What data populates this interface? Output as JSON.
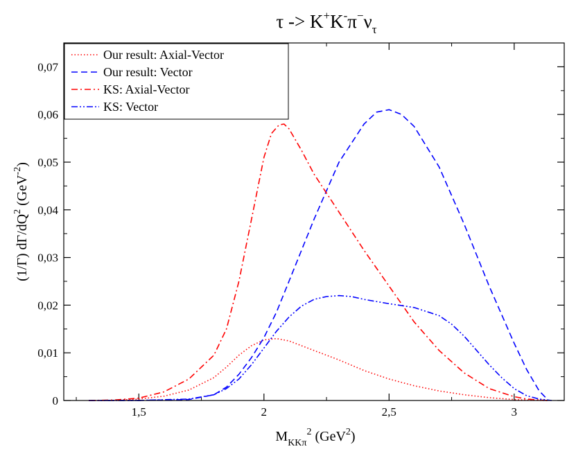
{
  "chart_data": {
    "type": "line",
    "title": {
      "base": "τ -> K",
      "s1": "+",
      "mid1": "K",
      "s2": "-",
      "mid2": "π",
      "s3": "−",
      "mid3": "ν",
      "sub": "τ"
    },
    "xlabel": {
      "base": "M",
      "sub": "KKπ",
      "sup": "2",
      "unit": " (GeV",
      "unit_sup": "2",
      "close": ")"
    },
    "ylabel": {
      "base": "(1/Γ) dΓ/dQ",
      "sup": "2",
      "unit": " (GeV",
      "unit_sup": "-2",
      "close": ")"
    },
    "xlim": [
      1.2,
      3.2
    ],
    "ylim": [
      0,
      0.075
    ],
    "x_ticks": [
      1.5,
      2,
      2.5,
      3
    ],
    "x_tick_labels": [
      "1,5",
      "2",
      "2,5",
      "3"
    ],
    "y_ticks": [
      0,
      0.01,
      0.02,
      0.03,
      0.04,
      0.05,
      0.06,
      0.07
    ],
    "y_tick_labels": [
      "0",
      "0,01",
      "0,02",
      "0,03",
      "0,04",
      "0,05",
      "0,06",
      "0,07"
    ],
    "grid": false,
    "legend_position": "top-left",
    "series": [
      {
        "name": "Our result: Axial-Vector",
        "color": "#ff0000",
        "dash": "dotted",
        "x": [
          1.3,
          1.4,
          1.5,
          1.6,
          1.7,
          1.8,
          1.85,
          1.9,
          1.95,
          2.0,
          2.05,
          2.1,
          2.2,
          2.3,
          2.4,
          2.5,
          2.6,
          2.7,
          2.8,
          2.9,
          3.0,
          3.05,
          3.1,
          3.137
        ],
        "y": [
          0,
          5e-05,
          0.0003,
          0.0009,
          0.0022,
          0.0048,
          0.007,
          0.0095,
          0.0115,
          0.0127,
          0.013,
          0.0125,
          0.0105,
          0.0085,
          0.0063,
          0.0045,
          0.0031,
          0.002,
          0.0012,
          0.0006,
          0.0002,
          0.0001,
          3e-05,
          0
        ]
      },
      {
        "name": "Our result: Vector",
        "color": "#0000ff",
        "dash": "dashed",
        "x": [
          1.3,
          1.5,
          1.7,
          1.8,
          1.85,
          1.9,
          1.95,
          2.0,
          2.05,
          2.1,
          2.2,
          2.3,
          2.4,
          2.45,
          2.5,
          2.55,
          2.6,
          2.7,
          2.8,
          2.9,
          3.0,
          3.05,
          3.1,
          3.137
        ],
        "y": [
          0,
          2e-05,
          0.0002,
          0.0012,
          0.0028,
          0.0055,
          0.009,
          0.0132,
          0.0185,
          0.025,
          0.038,
          0.05,
          0.058,
          0.0605,
          0.061,
          0.06,
          0.0575,
          0.049,
          0.037,
          0.024,
          0.012,
          0.0065,
          0.002,
          0
        ]
      },
      {
        "name": "KS: Axial-Vector",
        "color": "#ff0000",
        "dash": "dashdot",
        "x": [
          1.3,
          1.4,
          1.5,
          1.6,
          1.7,
          1.8,
          1.85,
          1.9,
          1.95,
          2.0,
          2.03,
          2.06,
          2.08,
          2.1,
          2.15,
          2.2,
          2.3,
          2.4,
          2.5,
          2.6,
          2.7,
          2.8,
          2.9,
          3.0,
          3.05,
          3.1,
          3.137
        ],
        "y": [
          0,
          0.0001,
          0.0005,
          0.0018,
          0.0045,
          0.0095,
          0.015,
          0.025,
          0.038,
          0.051,
          0.056,
          0.0578,
          0.058,
          0.057,
          0.0525,
          0.0475,
          0.0395,
          0.0315,
          0.024,
          0.0165,
          0.0105,
          0.0058,
          0.0025,
          0.0008,
          0.0003,
          0.0001,
          0
        ]
      },
      {
        "name": "KS: Vector",
        "color": "#0000ff",
        "dash": "dashdotdot",
        "x": [
          1.3,
          1.5,
          1.7,
          1.8,
          1.85,
          1.9,
          1.95,
          2.0,
          2.05,
          2.1,
          2.15,
          2.2,
          2.25,
          2.3,
          2.35,
          2.4,
          2.5,
          2.6,
          2.7,
          2.75,
          2.8,
          2.85,
          2.9,
          2.95,
          3.0,
          3.05,
          3.1,
          3.15
        ],
        "y": [
          0,
          2e-05,
          0.0003,
          0.0012,
          0.0025,
          0.0045,
          0.0075,
          0.011,
          0.0145,
          0.0175,
          0.0198,
          0.0212,
          0.0218,
          0.022,
          0.0218,
          0.0212,
          0.0203,
          0.0195,
          0.0178,
          0.016,
          0.0135,
          0.0105,
          0.0075,
          0.0048,
          0.0025,
          0.001,
          0.0003,
          0
        ]
      }
    ]
  }
}
